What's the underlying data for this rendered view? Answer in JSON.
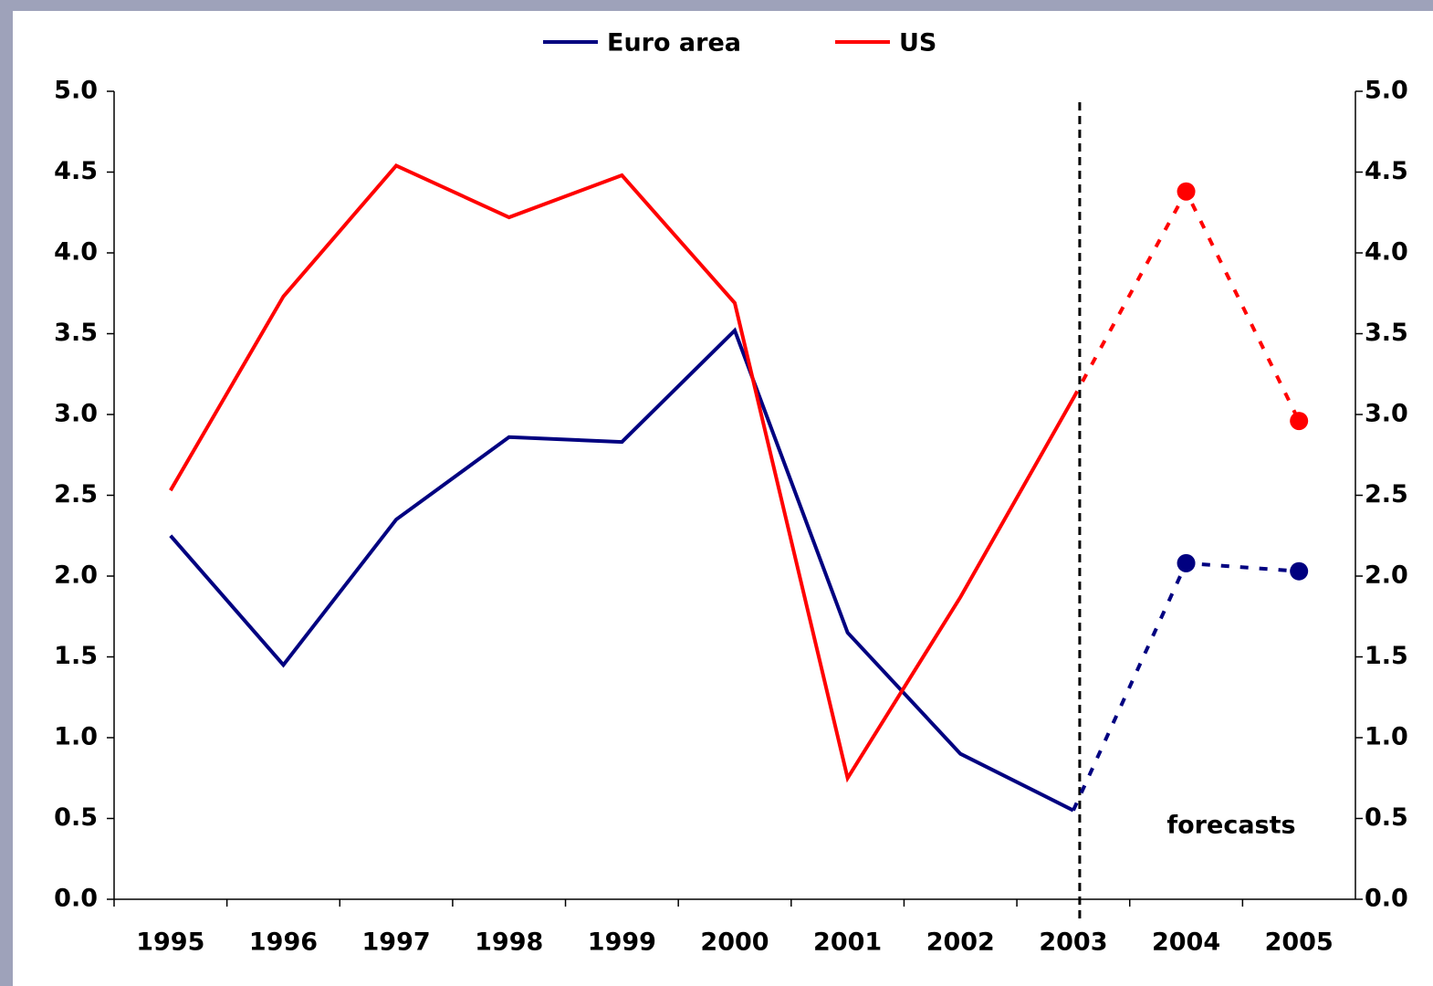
{
  "chart_data": {
    "type": "line",
    "categories": [
      "1995",
      "1996",
      "1997",
      "1998",
      "1999",
      "2000",
      "2001",
      "2002",
      "2003",
      "2004",
      "2005"
    ],
    "series": [
      {
        "name": "Euro area",
        "color": "#000080",
        "values": [
          2.25,
          1.45,
          2.35,
          2.86,
          2.83,
          3.52,
          1.65,
          0.9,
          0.55,
          2.08,
          2.03
        ]
      },
      {
        "name": "US",
        "color": "#ff0000",
        "values": [
          2.53,
          3.73,
          4.54,
          4.22,
          4.48,
          3.69,
          0.75,
          1.87,
          3.1,
          4.38,
          2.96
        ]
      }
    ],
    "forecast_from": "2003",
    "annotation": "forecasts",
    "ylim": [
      0,
      5
    ],
    "yticks": [
      {
        "value": 0,
        "label": "0.0"
      },
      0.5,
      {
        "value": 1,
        "label": "1.0"
      },
      1.5,
      {
        "value": 2,
        "label": "2.0"
      },
      2.5,
      {
        "value": 3,
        "label": "3.0"
      },
      3.5,
      {
        "value": 4,
        "label": "4.0"
      },
      4.5,
      {
        "value": 5,
        "label": "5.0"
      }
    ],
    "legend": "top"
  }
}
